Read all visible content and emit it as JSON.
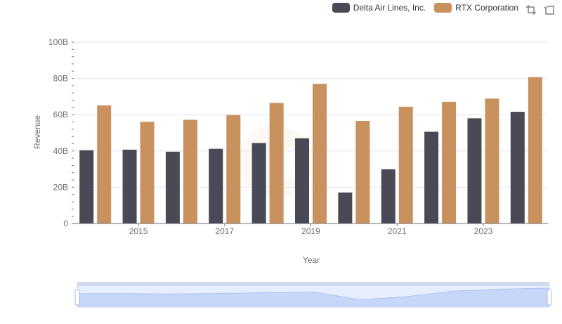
{
  "legend": [
    {
      "name": "Delta Air Lines, Inc.",
      "color": "#4a4a56"
    },
    {
      "name": "RTX Corporation",
      "color": "#c8915e"
    }
  ],
  "toolbox": {
    "zoom_icon": "zoom-icon",
    "restore_icon": "restore-icon"
  },
  "chart_data": {
    "type": "bar",
    "xlabel": "Year",
    "ylabel": "Revenue",
    "ylim": [
      0,
      100
    ],
    "y_unit": "B",
    "yticks": [
      "0",
      "20B",
      "40B",
      "60B",
      "80B",
      "100B"
    ],
    "categories": [
      "2014",
      "2015",
      "2016",
      "2017",
      "2018",
      "2019",
      "2020",
      "2021",
      "2022",
      "2023",
      "2024"
    ],
    "xtick_labels": [
      "2015",
      "2017",
      "2019",
      "2021",
      "2023"
    ],
    "grid": true,
    "legend_position": "top-right",
    "series": [
      {
        "name": "Delta Air Lines, Inc.",
        "color": "#4a4a56",
        "values": [
          40.4,
          40.7,
          39.6,
          41.2,
          44.4,
          47.0,
          17.1,
          29.9,
          50.6,
          58.0,
          61.6
        ]
      },
      {
        "name": "RTX Corporation",
        "color": "#c8915e",
        "values": [
          65.1,
          56.1,
          57.2,
          59.8,
          66.5,
          77.0,
          56.6,
          64.4,
          67.1,
          68.9,
          80.7
        ]
      }
    ],
    "data_zoom": {
      "start": 0,
      "end": 100
    }
  }
}
